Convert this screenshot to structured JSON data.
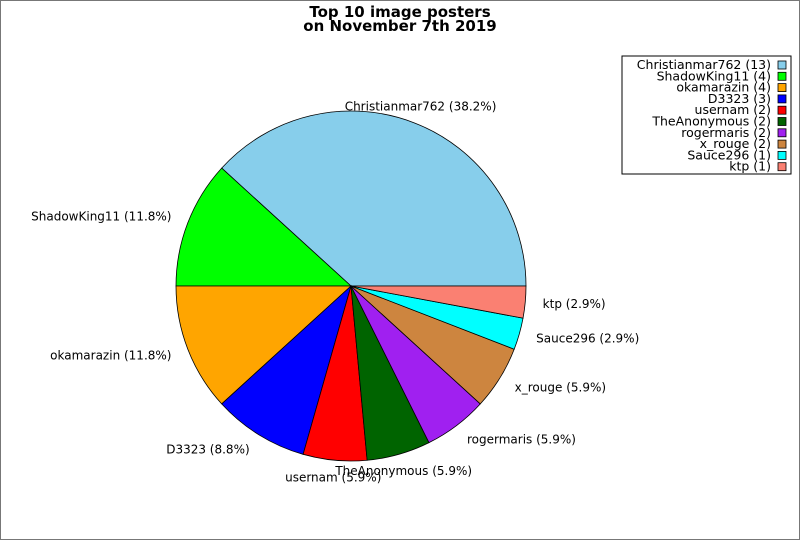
{
  "chart_data": {
    "type": "pie",
    "title": "Top 10 image posters\non November 7th 2019",
    "title_lines": [
      "Top 10 image posters",
      "on November 7th 2019"
    ],
    "start_angle_deg": 0,
    "direction": "counterclockwise",
    "legend_placement": "top-right",
    "slices": [
      {
        "name": "Christianmar762",
        "value": 13,
        "label": "Christianmar762 (38.2%)",
        "legend": "Christianmar762 (13)",
        "color": "#87CEEB"
      },
      {
        "name": "ShadowKing11",
        "value": 4,
        "label": "ShadowKing11 (11.8%)",
        "legend": "ShadowKing11 (4)",
        "color": "#00FF00"
      },
      {
        "name": "okamarazin",
        "value": 4,
        "label": "okamarazin (11.8%)",
        "legend": "okamarazin (4)",
        "color": "#FFA500"
      },
      {
        "name": "D3323",
        "value": 3,
        "label": "D3323 (8.8%)",
        "legend": "D3323 (3)",
        "color": "#0000FF"
      },
      {
        "name": "usernam",
        "value": 2,
        "label": "usernam (5.9%)",
        "legend": "usernam (2)",
        "color": "#FF0000"
      },
      {
        "name": "TheAnonymous",
        "value": 2,
        "label": "TheAnonymous (5.9%)",
        "legend": "TheAnonymous (2)",
        "color": "#006400"
      },
      {
        "name": "rogermaris",
        "value": 2,
        "label": "rogermaris (5.9%)",
        "legend": "rogermaris (2)",
        "color": "#A020F0"
      },
      {
        "name": "x_rouge",
        "value": 2,
        "label": "x_rouge (5.9%)",
        "legend": "x_rouge (2)",
        "color": "#CD853F"
      },
      {
        "name": "Sauce296",
        "value": 1,
        "label": "Sauce296 (2.9%)",
        "legend": "Sauce296 (1)",
        "color": "#00FFFF"
      },
      {
        "name": "ktp",
        "value": 1,
        "label": "ktp (2.9%)",
        "legend": "ktp (1)",
        "color": "#FA8072"
      }
    ]
  }
}
